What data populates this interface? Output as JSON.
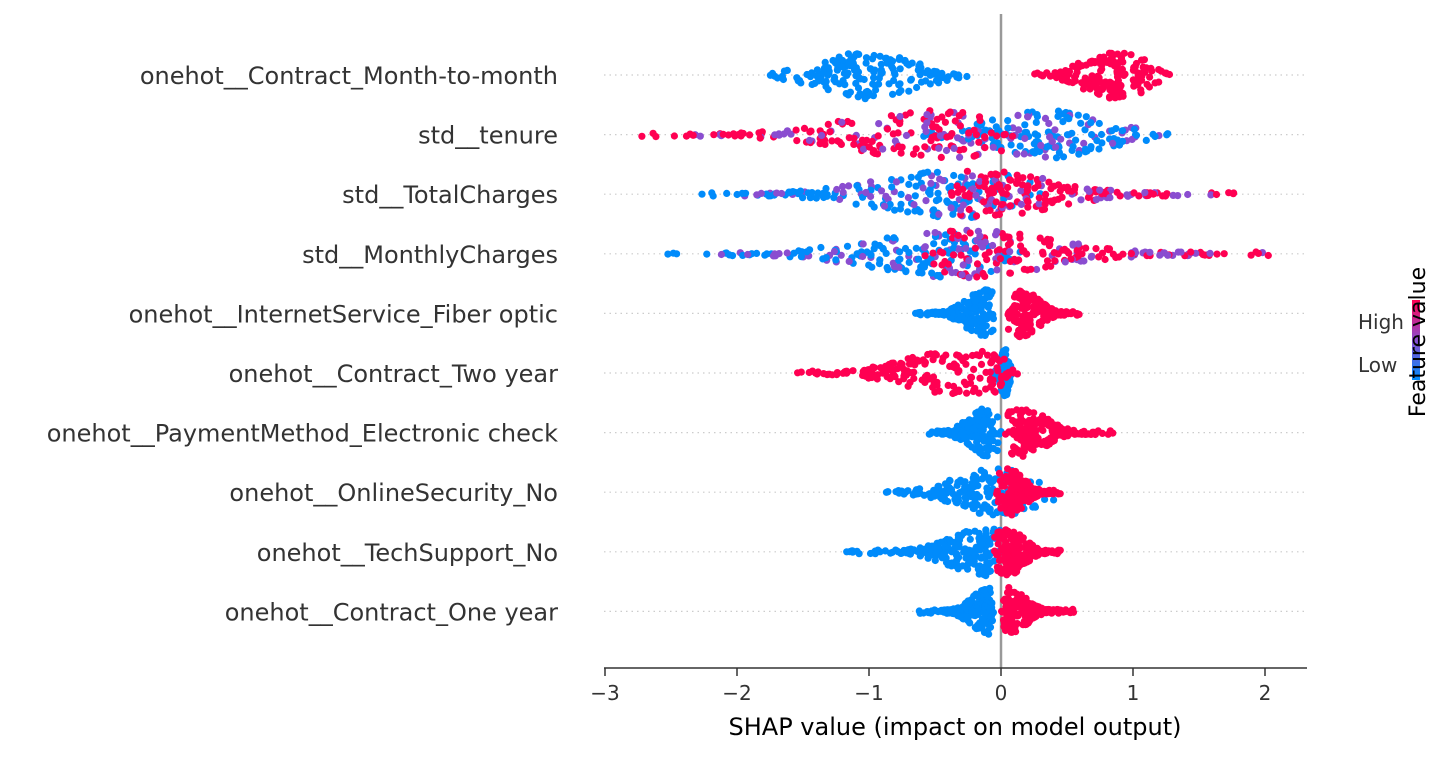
{
  "chart_data": {
    "type": "scatter",
    "subtype": "shap-beeswarm",
    "title": "",
    "xlabel": "SHAP value (impact on model output)",
    "xlim": [
      -3.0,
      2.3
    ],
    "xticks": [
      -3,
      -2,
      -1,
      0,
      1,
      2
    ],
    "xtick_labels": [
      "−3",
      "−2",
      "−1",
      "0",
      "1",
      "2"
    ],
    "colorbar": {
      "title": "Feature value",
      "high_label": "High",
      "low_label": "Low",
      "high_color": "#ff0052",
      "low_color": "#008bfb"
    },
    "colors": {
      "high": "#ff0052",
      "low": "#008bfb",
      "mid": "#8a4dd0",
      "zero_line": "#999999",
      "row_line": "#cccccc",
      "axis": "#333333"
    },
    "grid": false,
    "features": [
      {
        "name": "onehot__Contract_Month-to-month",
        "low_range": [
          -1.75,
          -0.25
        ],
        "low_peak": -1.0,
        "high_range": [
          0.25,
          1.3
        ],
        "high_peak": 0.88,
        "mixed": false
      },
      {
        "name": "std__tenure",
        "low_range": [
          -0.6,
          1.28
        ],
        "low_peak": 0.35,
        "high_range": [
          -2.75,
          0.1
        ],
        "high_peak": -0.5,
        "mixed": true
      },
      {
        "name": "std__TotalCharges",
        "low_range": [
          -2.3,
          0.3
        ],
        "low_peak": -0.3,
        "high_range": [
          -0.4,
          1.8
        ],
        "high_peak": -0.15,
        "mixed": true
      },
      {
        "name": "std__MonthlyCharges",
        "low_range": [
          -2.6,
          0.15
        ],
        "low_peak": -0.3,
        "high_range": [
          -0.6,
          2.05
        ],
        "high_peak": -0.25,
        "mixed": true
      },
      {
        "name": "onehot__InternetService_Fiber optic",
        "low_range": [
          -0.65,
          -0.05
        ],
        "low_peak": -0.12,
        "high_range": [
          0.05,
          0.6
        ],
        "high_peak": 0.15,
        "mixed": false
      },
      {
        "name": "onehot__Contract_Two year",
        "low_range": [
          -0.05,
          0.08
        ],
        "low_peak": 0.03,
        "high_range": [
          -1.55,
          0.15
        ],
        "high_peak": -0.3,
        "mixed": false
      },
      {
        "name": "onehot__PaymentMethod_Electronic check",
        "low_range": [
          -0.55,
          0.0
        ],
        "low_peak": -0.12,
        "high_range": [
          0.02,
          0.85
        ],
        "high_peak": 0.15,
        "mixed": false
      },
      {
        "name": "onehot__OnlineSecurity_No",
        "low_range": [
          -0.92,
          0.4
        ],
        "low_peak": -0.02,
        "high_range": [
          -0.05,
          0.45
        ],
        "high_peak": 0.05,
        "mixed": false
      },
      {
        "name": "onehot__TechSupport_No",
        "low_range": [
          -1.2,
          0.0
        ],
        "low_peak": -0.1,
        "high_range": [
          -0.05,
          0.45
        ],
        "high_peak": 0.05,
        "mixed": false
      },
      {
        "name": "onehot__Contract_One year",
        "low_range": [
          -0.62,
          -0.05
        ],
        "low_peak": -0.08,
        "high_range": [
          0.0,
          0.55
        ],
        "high_peak": 0.05,
        "mixed": false
      }
    ]
  }
}
